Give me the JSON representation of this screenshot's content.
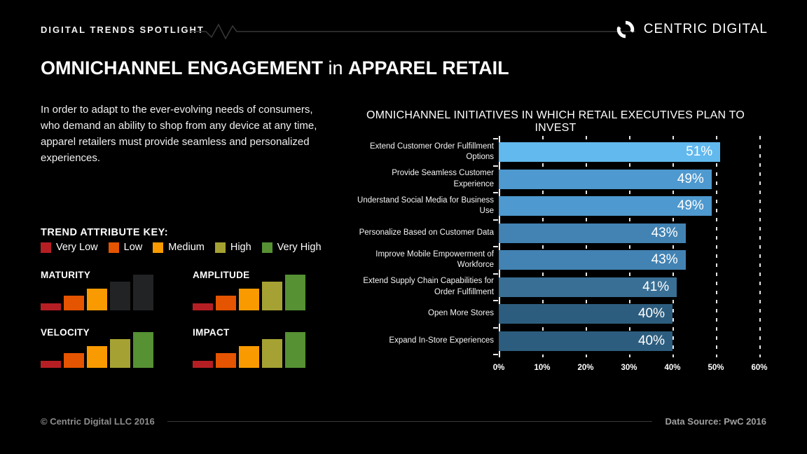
{
  "header": {
    "eyebrow": "DIGITAL TRENDS SPOTLIGHT",
    "brand": "CENTRIC DIGITAL"
  },
  "title": {
    "part1": "OMNICHANNEL ENGAGEMENT",
    "part2": " in ",
    "part3": "APPAREL RETAIL"
  },
  "intro": {
    "text": "In order to adapt to the ever-evolving needs of consumers, who demand an ability to shop from any device at any time, apparel retailers must provide seamless and personalized experiences."
  },
  "trend_key": {
    "title": "TREND ATTRIBUTE KEY:",
    "inactive_color": "#212325"
  },
  "chart_data": [
    {
      "type": "bar",
      "orientation": "horizontal",
      "title": "OMNICHANNEL INITIATIVES IN WHICH RETAIL EXECUTIVES PLAN TO INVEST",
      "categories": [
        "Extend Customer Order Fulfillment Options",
        "Provide Seamless Customer Experience",
        "Understand Social Media for Business Use",
        "Personalize Based on Customer Data",
        "Improve Mobile Empowerment of Workforce",
        "Extend Supply Chain Capabilities for Order Fulfillment",
        "Open More Stores",
        "Expand In-Store Experiences"
      ],
      "values": [
        51,
        49,
        49,
        43,
        43,
        41,
        40,
        40
      ],
      "value_labels": [
        "51%",
        "49%",
        "49%",
        "43%",
        "43%",
        "41%",
        "40%",
        "40%"
      ],
      "unit": "%",
      "xlim": [
        0,
        60
      ],
      "x_ticks": [
        "0%",
        "10%",
        "20%",
        "30%",
        "40%",
        "50%",
        "60%"
      ],
      "grid": "vertical-dashed",
      "legend": "none",
      "bar_colors": [
        "#62b9ee",
        "#4e99cf",
        "#4e99cf",
        "#4283b3",
        "#4283b3",
        "#396f95",
        "#2d5d7e",
        "#2d5d7e"
      ],
      "value_label_position": "inside-right"
    },
    {
      "type": "rating-bars",
      "scale": [
        {
          "label": "Very Low",
          "color": "#b51f24"
        },
        {
          "label": "Low",
          "color": "#e55400"
        },
        {
          "label": "Medium",
          "color": "#f99b00"
        },
        {
          "label": "High",
          "color": "#a5a233"
        },
        {
          "label": "Very High",
          "color": "#569134"
        }
      ],
      "attributes": [
        {
          "name": "MATURITY",
          "level": 3
        },
        {
          "name": "AMPLITUDE",
          "level": 5
        },
        {
          "name": "VELOCITY",
          "level": 5
        },
        {
          "name": "IMPACT",
          "level": 5
        }
      ]
    }
  ],
  "footer": {
    "copyright": "© Centric Digital LLC 2016",
    "source": "Data Source: PwC 2016"
  }
}
